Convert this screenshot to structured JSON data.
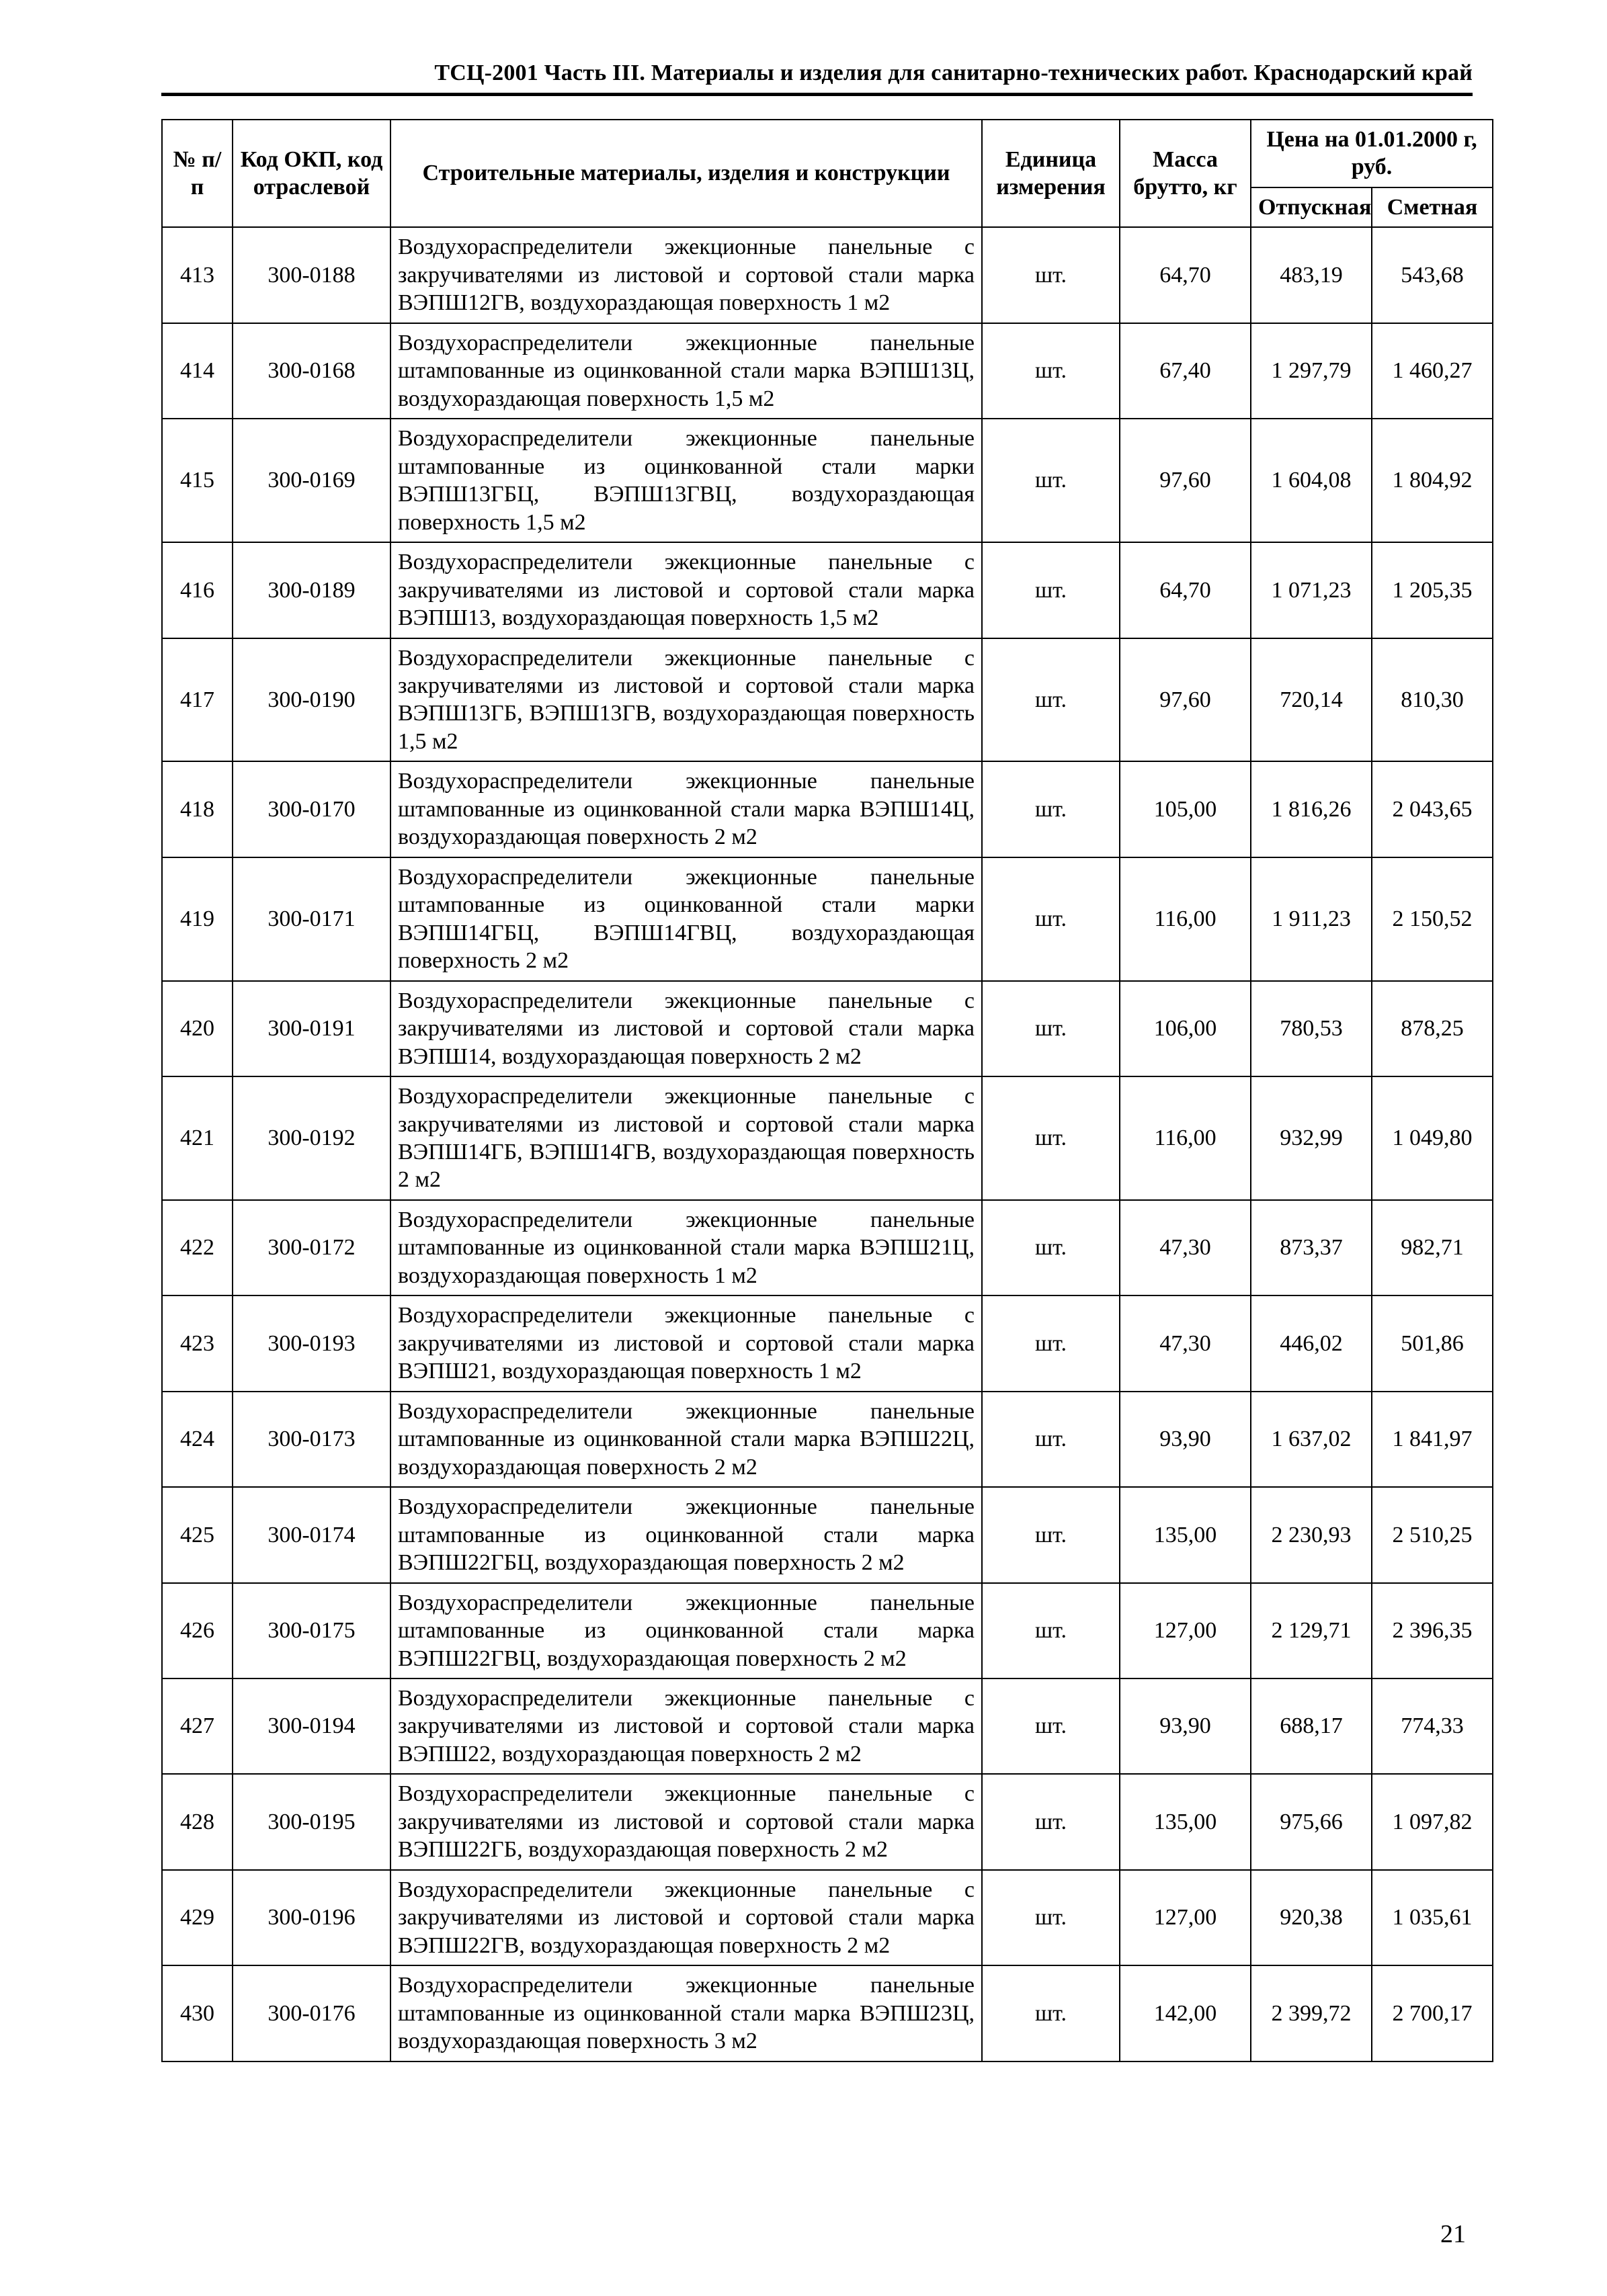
{
  "header": "ТСЦ-2001 Часть III. Материалы и изделия для санитарно-технических работ.  Краснодарский край",
  "pageNumber": "21",
  "table": {
    "columns": {
      "num": "№ п/п",
      "code": "Код ОКП, код отраслевой",
      "name": "Строительные материалы, изделия и конструкции",
      "unit": "Единица измерения",
      "mass": "Масса брутто, кг",
      "priceHeader": "Цена на 01.01.2000 г, руб.",
      "priceRelease": "Отпускная",
      "priceEstimate": "Сметная"
    },
    "rows": [
      {
        "num": "413",
        "code": "300-0188",
        "name": "Воздухораспределители эжекционные панельные с закручивателями из листовой и сортовой стали марка ВЭПШ12ГВ, воздухораздающая поверхность 1 м2",
        "unit": "шт.",
        "mass": "64,70",
        "p1": "483,19",
        "p2": "543,68"
      },
      {
        "num": "414",
        "code": "300-0168",
        "name": "Воздухораспределители эжекционные панельные штампованные из оцинкованной стали марка ВЭПШ13Ц, воздухораздающая поверхность 1,5 м2",
        "unit": "шт.",
        "mass": "67,40",
        "p1": "1 297,79",
        "p2": "1 460,27"
      },
      {
        "num": "415",
        "code": "300-0169",
        "name": "Воздухораспределители эжекционные панельные штампованные из оцинкованной стали марки ВЭПШ13ГБЦ, ВЭПШ13ГВЦ, воздухораздающая поверхность 1,5 м2",
        "unit": "шт.",
        "mass": "97,60",
        "p1": "1 604,08",
        "p2": "1 804,92"
      },
      {
        "num": "416",
        "code": "300-0189",
        "name": "Воздухораспределители эжекционные панельные с закручивателями из листовой и сортовой стали марка ВЭПШ13, воздухораздающая поверхность 1,5 м2",
        "unit": "шт.",
        "mass": "64,70",
        "p1": "1 071,23",
        "p2": "1 205,35"
      },
      {
        "num": "417",
        "code": "300-0190",
        "name": "Воздухораспределители эжекционные панельные с закручивателями из листовой и сортовой стали марка ВЭПШ13ГБ, ВЭПШ13ГВ, воздухораздающая поверхность 1,5 м2",
        "unit": "шт.",
        "mass": "97,60",
        "p1": "720,14",
        "p2": "810,30"
      },
      {
        "num": "418",
        "code": "300-0170",
        "name": "Воздухораспределители эжекционные панельные штампованные из оцинкованной стали марка ВЭПШ14Ц, воздухораздающая поверхность 2 м2",
        "unit": "шт.",
        "mass": "105,00",
        "p1": "1 816,26",
        "p2": "2 043,65"
      },
      {
        "num": "419",
        "code": "300-0171",
        "name": "Воздухораспределители эжекционные панельные штампованные из оцинкованной стали марки ВЭПШ14ГБЦ, ВЭПШ14ГВЦ, воздухораздающая поверхность 2 м2",
        "unit": "шт.",
        "mass": "116,00",
        "p1": "1 911,23",
        "p2": "2 150,52"
      },
      {
        "num": "420",
        "code": "300-0191",
        "name": "Воздухораспределители эжекционные панельные с закручивателями из листовой и сортовой стали марка ВЭПШ14, воздухораздающая поверхность 2 м2",
        "unit": "шт.",
        "mass": "106,00",
        "p1": "780,53",
        "p2": "878,25"
      },
      {
        "num": "421",
        "code": "300-0192",
        "name": "Воздухораспределители эжекционные панельные с закручивателями из листовой и сортовой стали марка ВЭПШ14ГБ, ВЭПШ14ГВ, воздухораздающая поверхность 2 м2",
        "unit": "шт.",
        "mass": "116,00",
        "p1": "932,99",
        "p2": "1 049,80"
      },
      {
        "num": "422",
        "code": "300-0172",
        "name": "Воздухораспределители эжекционные панельные штампованные из оцинкованной стали марка ВЭПШ21Ц, воздухораздающая поверхность 1 м2",
        "unit": "шт.",
        "mass": "47,30",
        "p1": "873,37",
        "p2": "982,71"
      },
      {
        "num": "423",
        "code": "300-0193",
        "name": "Воздухораспределители эжекционные панельные с закручивателями из листовой и сортовой стали марка ВЭПШ21, воздухораздающая поверхность 1 м2",
        "unit": "шт.",
        "mass": "47,30",
        "p1": "446,02",
        "p2": "501,86"
      },
      {
        "num": "424",
        "code": "300-0173",
        "name": "Воздухораспределители эжекционные панельные штампованные из оцинкованной стали марка ВЭПШ22Ц, воздухораздающая поверхность 2 м2",
        "unit": "шт.",
        "mass": "93,90",
        "p1": "1 637,02",
        "p2": "1 841,97"
      },
      {
        "num": "425",
        "code": "300-0174",
        "name": "Воздухораспределители эжекционные панельные штампованные из оцинкованной стали марка ВЭПШ22ГБЦ, воздухораздающая поверхность 2 м2",
        "unit": "шт.",
        "mass": "135,00",
        "p1": "2 230,93",
        "p2": "2 510,25"
      },
      {
        "num": "426",
        "code": "300-0175",
        "name": "Воздухораспределители эжекционные панельные штампованные из оцинкованной стали марка ВЭПШ22ГВЦ, воздухораздающая поверхность 2 м2",
        "unit": "шт.",
        "mass": "127,00",
        "p1": "2 129,71",
        "p2": "2 396,35"
      },
      {
        "num": "427",
        "code": "300-0194",
        "name": "Воздухораспределители эжекционные панельные с закручивателями из листовой и сортовой стали марка ВЭПШ22, воздухораздающая поверхность 2 м2",
        "unit": "шт.",
        "mass": "93,90",
        "p1": "688,17",
        "p2": "774,33"
      },
      {
        "num": "428",
        "code": "300-0195",
        "name": "Воздухораспределители эжекционные панельные с закручивателями из листовой и сортовой стали марка ВЭПШ22ГБ, воздухораздающая поверхность 2 м2",
        "unit": "шт.",
        "mass": "135,00",
        "p1": "975,66",
        "p2": "1 097,82"
      },
      {
        "num": "429",
        "code": "300-0196",
        "name": "Воздухораспределители эжекционные панельные с закручивателями из листовой и сортовой стали марка ВЭПШ22ГВ, воздухораздающая поверхность 2 м2",
        "unit": "шт.",
        "mass": "127,00",
        "p1": "920,38",
        "p2": "1 035,61"
      },
      {
        "num": "430",
        "code": "300-0176",
        "name": "Воздухораспределители эжекционные панельные штампованные из оцинкованной стали марка ВЭПШ23Ц, воздухораздающая поверхность 3 м2",
        "unit": "шт.",
        "mass": "142,00",
        "p1": "2 399,72",
        "p2": "2 700,17"
      }
    ]
  }
}
